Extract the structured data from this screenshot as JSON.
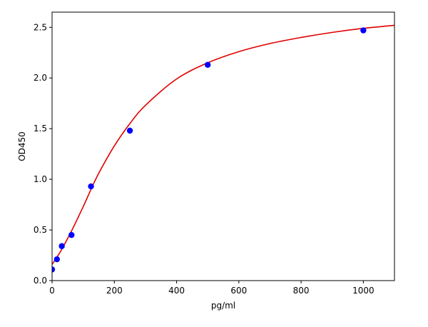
{
  "chart_data": {
    "type": "scatter",
    "xlabel": "pg/ml",
    "ylabel": "OD450",
    "xlim": [
      0,
      1100
    ],
    "ylim": [
      0,
      2.65
    ],
    "x_ticks": [
      0,
      200,
      400,
      600,
      800,
      1000
    ],
    "x_tick_labels": [
      "0",
      "200",
      "400",
      "600",
      "800",
      "1000"
    ],
    "y_ticks": [
      0.0,
      0.5,
      1.0,
      1.5,
      2.0,
      2.5
    ],
    "y_tick_labels": [
      "0.0",
      "0.5",
      "1.0",
      "1.5",
      "2.0",
      "2.5"
    ],
    "grid": false,
    "legend": "none",
    "series": [
      {
        "kind": "points",
        "color": "#0000ff",
        "x": [
          0,
          15.6,
          31.25,
          62.5,
          125,
          250,
          500,
          1000
        ],
        "y": [
          0.11,
          0.21,
          0.34,
          0.45,
          0.93,
          1.48,
          2.13,
          2.47
        ]
      },
      {
        "kind": "fit-curve",
        "color": "#e00000",
        "x": [
          0,
          15.6,
          31.25,
          62.5,
          100,
          125,
          150,
          200,
          250,
          300,
          400,
          500,
          600,
          700,
          800,
          900,
          1000,
          1100
        ],
        "y": [
          0.16,
          0.23,
          0.31,
          0.49,
          0.73,
          0.9,
          1.06,
          1.33,
          1.55,
          1.73,
          1.99,
          2.15,
          2.26,
          2.34,
          2.4,
          2.45,
          2.49,
          2.52
        ]
      }
    ]
  }
}
